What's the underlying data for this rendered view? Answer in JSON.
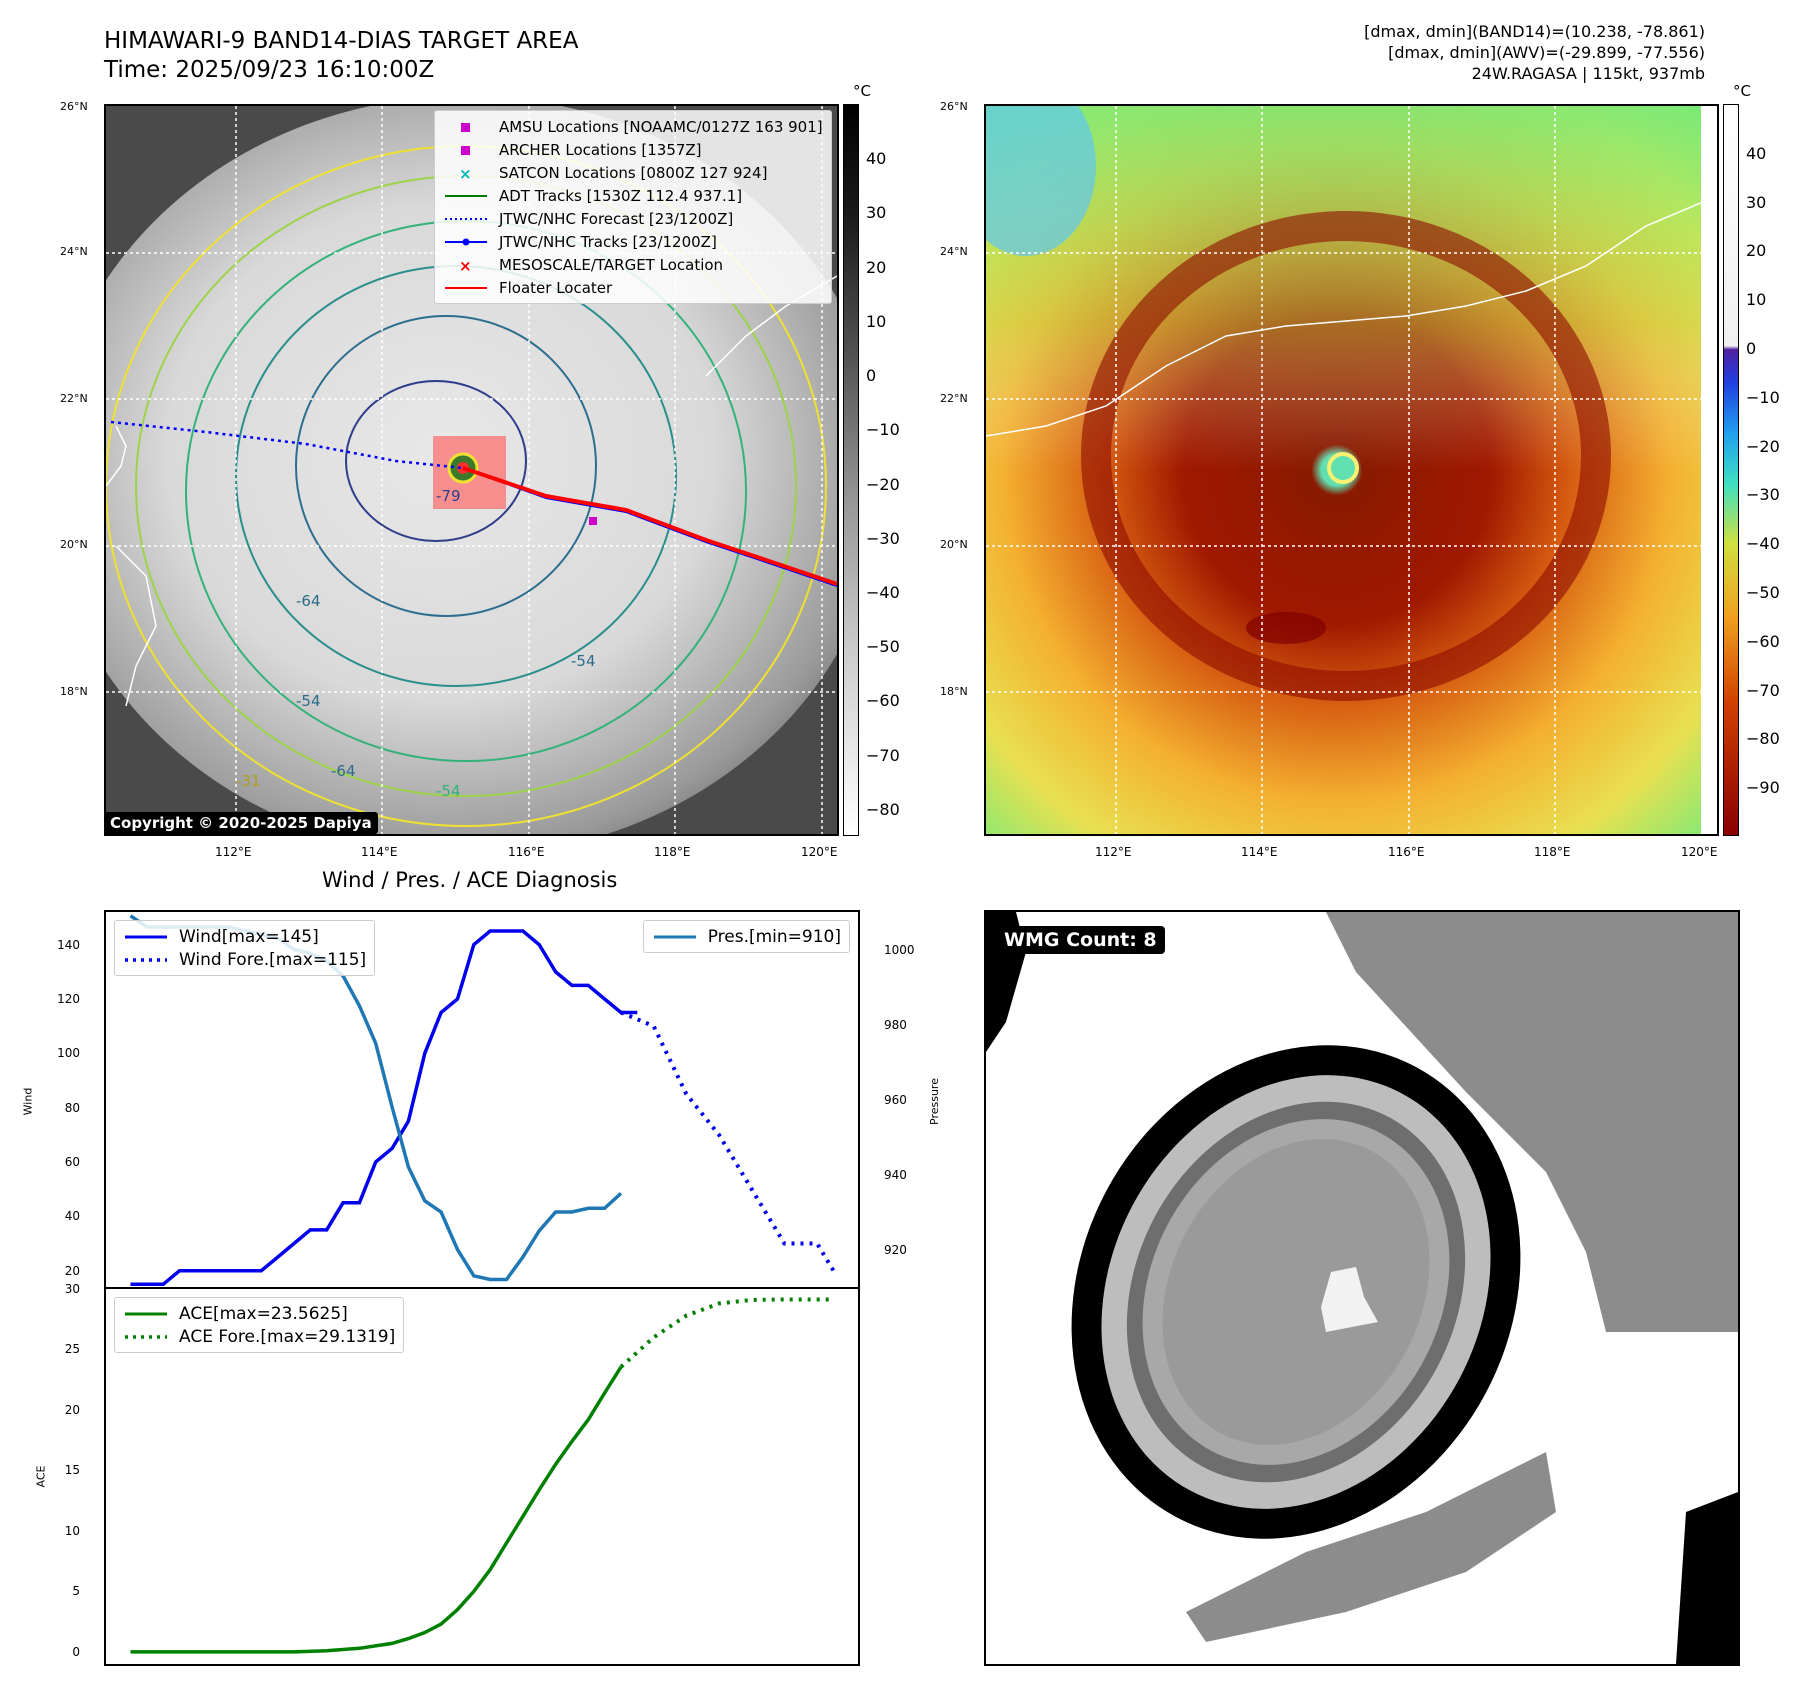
{
  "header": {
    "title_line1": "HIMAWARI-9 BAND14-DIAS TARGET AREA",
    "title_line2": "Time: 2025/09/23 16:10:00Z",
    "info_line1": "[dmax, dmin](BAND14)=(10.238, -78.861)",
    "info_line2": "[dmax, dmin](AWV)=(-29.899, -77.556)",
    "info_line3": "24W.RAGASA | 115kt, 937mb"
  },
  "map": {
    "lat_labels": [
      "26°N",
      "24°N",
      "22°N",
      "20°N",
      "18°N"
    ],
    "lon_labels": [
      "112°E",
      "114°E",
      "116°E",
      "118°E",
      "120°E"
    ],
    "copyright": "Copyright © 2020-2025 Dapiya",
    "legend": [
      {
        "label": "AMSU Locations [NOAAMC/0127Z 163 901]",
        "marker": "square",
        "color": "#cc00cc"
      },
      {
        "label": "ARCHER Locations [1357Z]",
        "marker": "square",
        "color": "#cc00cc"
      },
      {
        "label": "SATCON Locations [0800Z 127 924]",
        "marker": "x",
        "color": "#00bbbb"
      },
      {
        "label": "ADT Tracks [1530Z 112.4 937.1]",
        "marker": "line",
        "color": "#007a00"
      },
      {
        "label": "JTWC/NHC Forecast [23/1200Z]",
        "marker": "dotted",
        "color": "#0000ff"
      },
      {
        "label": "JTWC/NHC Tracks [23/1200Z]",
        "marker": "line-dot",
        "color": "#0000ff"
      },
      {
        "label": "MESOSCALE/TARGET Location",
        "marker": "x",
        "color": "#ff0000"
      },
      {
        "label": "Floater Locater",
        "marker": "line",
        "color": "#ff0000"
      }
    ],
    "contour_labels": [
      "-64",
      "-54",
      "-31",
      "-64",
      "-54",
      "-79",
      "-54"
    ]
  },
  "colorbar_left": {
    "unit": "°C",
    "ticks": [
      "40",
      "30",
      "20",
      "10",
      "0",
      "−10",
      "−20",
      "−30",
      "−40",
      "−50",
      "−60",
      "−70",
      "−80"
    ]
  },
  "colorbar_right": {
    "unit": "°C",
    "ticks": [
      "40",
      "30",
      "20",
      "10",
      "0",
      "−10",
      "−20",
      "−30",
      "−40",
      "−50",
      "−60",
      "−70",
      "−80",
      "−90"
    ]
  },
  "wind_panel": {
    "title": "Wind / Pres. / ACE Diagnosis",
    "ylabel_left": "Wind",
    "ylabel_right": "Pressure",
    "legend_wind": "Wind[max=145]",
    "legend_wind_fore": "Wind Fore.[max=115]",
    "legend_pres": "Pres.[min=910]",
    "wind_ticks": [
      "140",
      "120",
      "100",
      "80",
      "60",
      "40",
      "20"
    ],
    "pres_ticks": [
      "1000",
      "980",
      "960",
      "940",
      "920"
    ]
  },
  "ace_panel": {
    "ylabel": "ACE",
    "legend_ace": "ACE[max=23.5625]",
    "legend_ace_fore": "ACE Fore.[max=29.1319]",
    "ticks": [
      "30",
      "25",
      "20",
      "15",
      "10",
      "5",
      "0"
    ]
  },
  "wmg_panel": {
    "badge": "WMG Count: 8"
  },
  "colors": {
    "wind": "#0000ee",
    "pressure": "#1f77b4",
    "ace": "#008000",
    "track": "#ff0000"
  },
  "chart_data": [
    {
      "type": "line",
      "name": "wind",
      "ylim": [
        14,
        152
      ],
      "xlim": [
        0,
        44
      ],
      "series": [
        {
          "name": "Wind[max=145]",
          "x": [
            0,
            2,
            3,
            4,
            5,
            6,
            7,
            8,
            9,
            10,
            11,
            12,
            13,
            14,
            15,
            16,
            17,
            18,
            19,
            20,
            21,
            22,
            23,
            24,
            25,
            26,
            27,
            28,
            29,
            30,
            31
          ],
          "values": [
            15,
            15,
            20,
            20,
            20,
            20,
            20,
            20,
            25,
            30,
            35,
            35,
            45,
            45,
            60,
            65,
            75,
            100,
            115,
            120,
            140,
            145,
            145,
            145,
            140,
            130,
            125,
            125,
            120,
            115,
            115
          ]
        },
        {
          "name": "Wind Fore.[max=115]",
          "x": [
            30,
            32,
            34,
            36,
            38,
            40,
            42,
            43
          ],
          "values": [
            115,
            110,
            85,
            70,
            50,
            30,
            30,
            20
          ]
        }
      ]
    },
    {
      "type": "line",
      "name": "pressure",
      "ylim": [
        910,
        1010
      ],
      "series": [
        {
          "name": "Pres.[min=910]",
          "x": [
            0,
            1,
            2,
            3,
            4,
            5,
            6,
            7,
            8,
            9,
            10,
            11,
            12,
            13,
            14,
            15,
            16,
            17,
            18,
            19,
            20,
            21,
            22,
            23,
            24,
            25,
            26,
            27,
            28,
            29,
            30
          ],
          "values": [
            1009,
            1006,
            1006,
            1006,
            1006,
            1006,
            1006,
            1005,
            1004,
            1003,
            1000,
            999,
            997,
            993,
            985,
            975,
            958,
            942,
            933,
            930,
            920,
            913,
            912,
            912,
            918,
            925,
            930,
            930,
            931,
            931,
            935
          ]
        }
      ]
    },
    {
      "type": "line",
      "name": "ace",
      "ylim": [
        -1,
        30
      ],
      "series": [
        {
          "name": "ACE[max=23.5625]",
          "x": [
            0,
            5,
            10,
            12,
            14,
            16,
            17,
            18,
            19,
            20,
            21,
            22,
            23,
            24,
            25,
            26,
            27,
            28,
            29,
            30
          ],
          "values": [
            0,
            0,
            0,
            0.1,
            0.3,
            0.7,
            1.1,
            1.6,
            2.3,
            3.5,
            5.0,
            6.8,
            9,
            11.2,
            13.4,
            15.5,
            17.4,
            19.2,
            21.4,
            23.5625
          ]
        },
        {
          "name": "ACE Fore.[max=29.1319]",
          "x": [
            30,
            32,
            34,
            36,
            38,
            40,
            42,
            43
          ],
          "values": [
            23.5625,
            26,
            27.8,
            28.8,
            29.1,
            29.13,
            29.13,
            29.13
          ]
        }
      ]
    }
  ]
}
